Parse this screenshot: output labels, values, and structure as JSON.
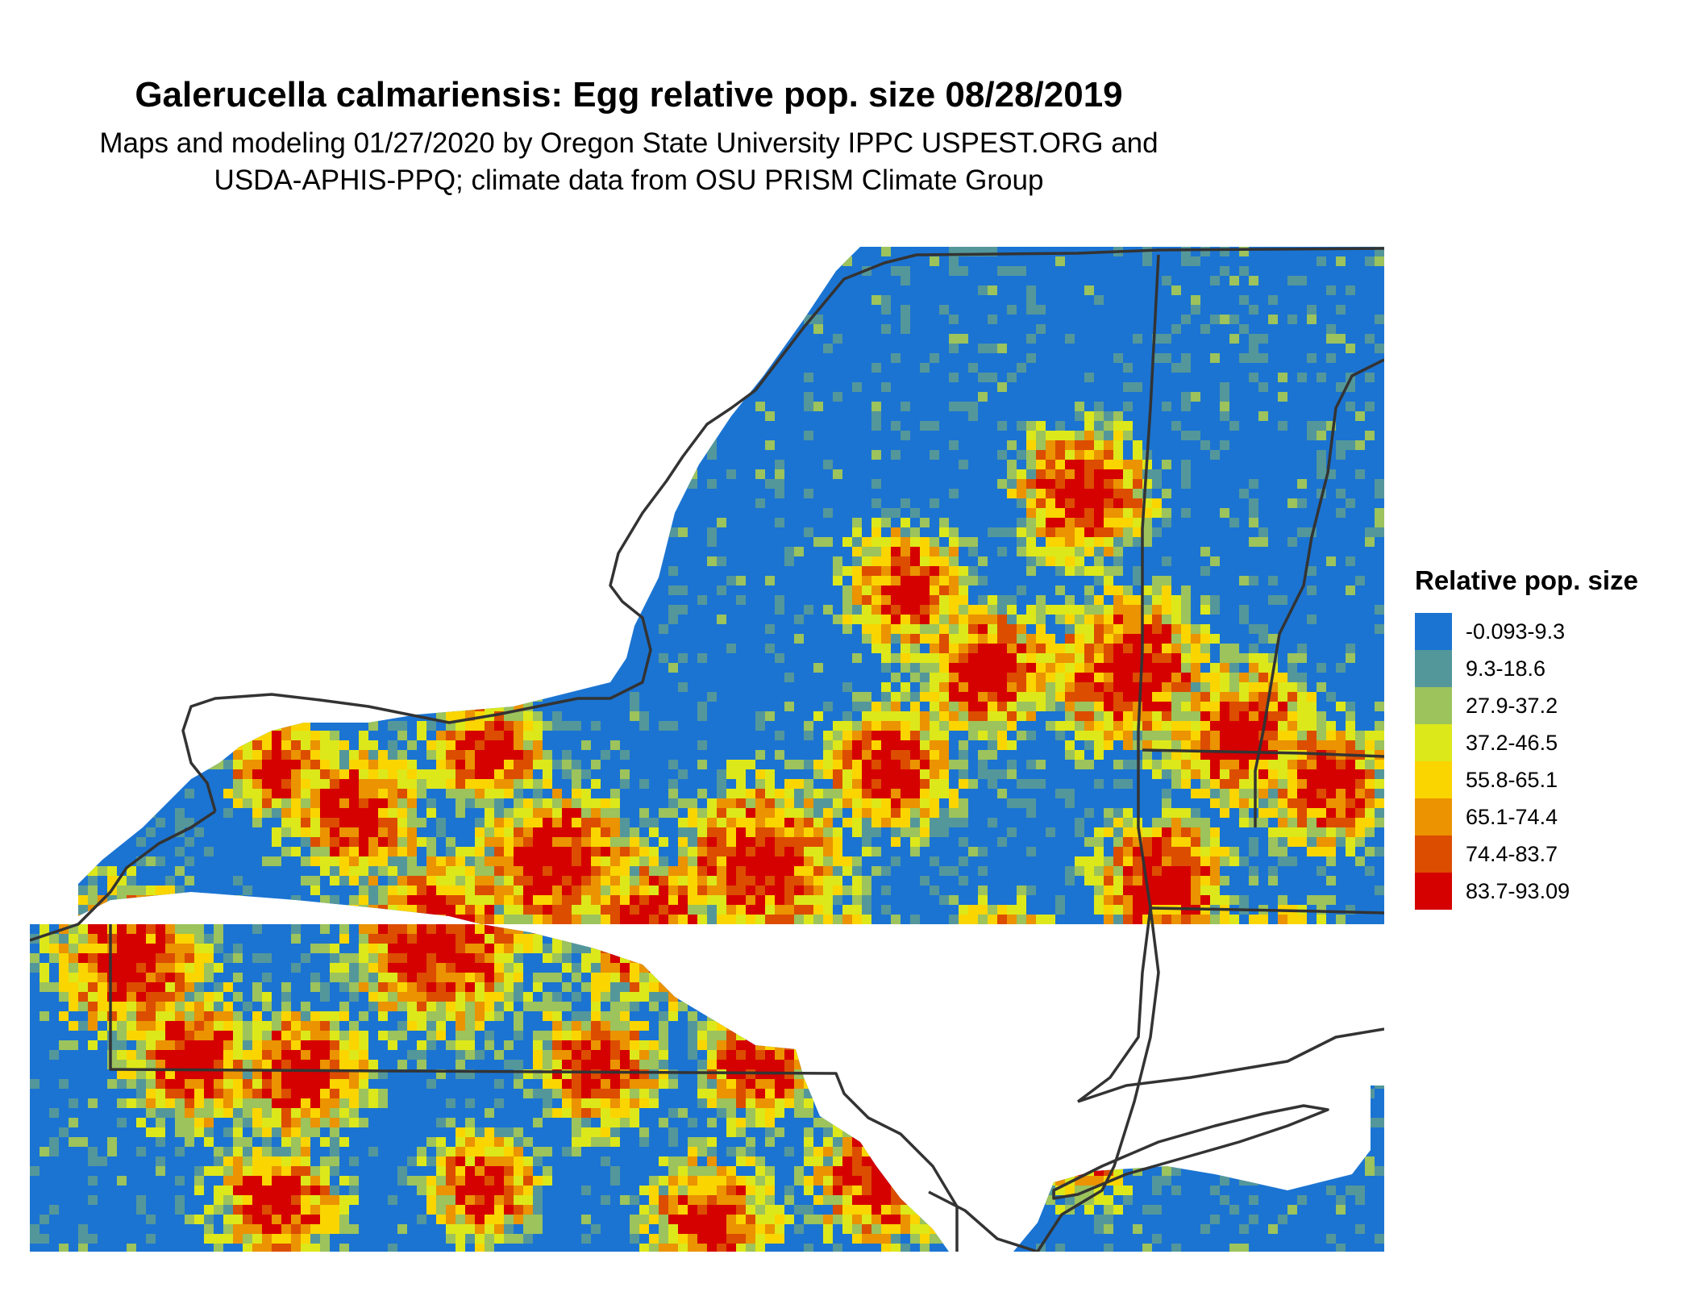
{
  "title": "Galerucella calmariensis: Egg relative pop. size 08/28/2019",
  "subtitle_line1": "Maps and modeling 01/27/2020 by Oregon State University IPPC USPEST.ORG and",
  "subtitle_line2": "USDA-APHIS-PPQ; climate data from OSU PRISM Climate Group",
  "legend": {
    "title": "Relative pop. size",
    "items": [
      {
        "label": "-0.093-9.3",
        "color": "#1b74d2"
      },
      {
        "label": "9.3-18.6",
        "color": "#54979b"
      },
      {
        "label": "27.9-37.2",
        "color": "#9cc35c"
      },
      {
        "label": "37.2-46.5",
        "color": "#dde81a"
      },
      {
        "label": "55.8-65.1",
        "color": "#fad500"
      },
      {
        "label": "65.1-74.4",
        "color": "#eb9300"
      },
      {
        "label": "74.4-83.7",
        "color": "#dc4d00"
      },
      {
        "label": "83.7-93.09",
        "color": "#d50000"
      }
    ]
  },
  "map": {
    "background_class": "-0.093-9.3",
    "border_color": "#333333"
  }
}
